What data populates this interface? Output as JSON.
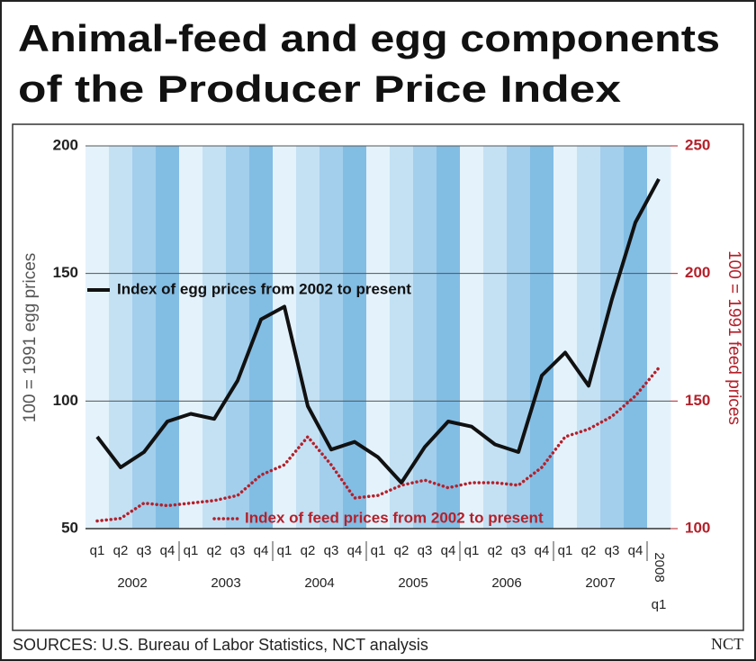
{
  "chart_data": {
    "type": "line",
    "title": [
      "Animal-feed and egg components",
      "of the Producer Price Index"
    ],
    "categories": [
      "q1",
      "q2",
      "q3",
      "q4",
      "q1",
      "q2",
      "q3",
      "q4",
      "q1",
      "q2",
      "q3",
      "q4",
      "q1",
      "q2",
      "q3",
      "q4",
      "q1",
      "q2",
      "q3",
      "q4",
      "q1",
      "q2",
      "q3",
      "q4",
      "q1"
    ],
    "years": [
      "2002",
      "2003",
      "2004",
      "2005",
      "2006",
      "2007",
      "2008"
    ],
    "series": [
      {
        "name": "Index of egg prices from 2002 to present",
        "color": "#111111",
        "style": "solid",
        "values": [
          86,
          74,
          80,
          92,
          95,
          93,
          108,
          132,
          137,
          98,
          81,
          84,
          78,
          68,
          82,
          92,
          90,
          83,
          80,
          110,
          119,
          106,
          140,
          170,
          187
        ]
      },
      {
        "name": "Index of feed prices from 2002 to present",
        "color": "#b5202a",
        "style": "dotted",
        "axis": "y2",
        "values": [
          103,
          104,
          110,
          109,
          110,
          111,
          113,
          121,
          125,
          136,
          125,
          112,
          113,
          117,
          119,
          116,
          118,
          118,
          117,
          124,
          136,
          139,
          144,
          152,
          163
        ]
      }
    ],
    "ylim": [
      50,
      200
    ],
    "yticks": [
      50,
      100,
      150,
      200
    ],
    "y2lim": [
      100,
      250
    ],
    "y2ticks": [
      100,
      150,
      200,
      250
    ],
    "ylabel": "100 = 1991 egg prices",
    "y2label": "100 = 1991 feed prices",
    "grid": true,
    "source": "SOURCES: U.S. Bureau of Labor Statistics, NCT analysis",
    "credit": "NCT"
  }
}
